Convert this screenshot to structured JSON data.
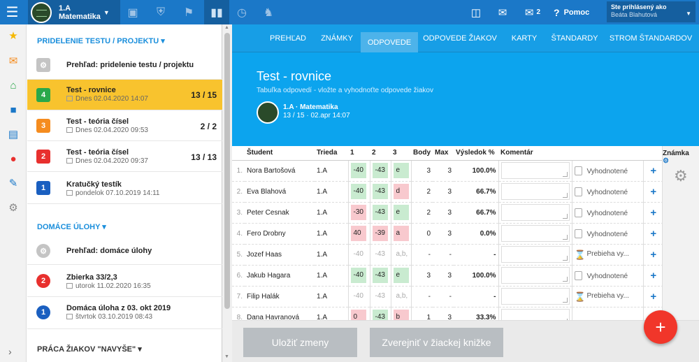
{
  "topbar": {
    "class_name": "1.A",
    "subject": "Matematika",
    "icons": [
      "briefcase-icon",
      "shield-icon",
      "bank-icon",
      "bar-chart-icon",
      "clock-icon",
      "walking-icon"
    ],
    "messages_badge": "2",
    "help_label": "Pomoc",
    "user_label": "Ste prihlásený ako",
    "user_name": "Beáta Blahutová"
  },
  "panel": {
    "section1": "PRIDELENIE TESTU / PROJEKTU",
    "overview1": "Prehľad: pridelenie testu / projektu",
    "tests": [
      {
        "num": "4",
        "title": "Test - rovnice",
        "date": "Dnes 02.04.2020 14:07",
        "score": "13 / 15",
        "color": "#2aa84a"
      },
      {
        "num": "3",
        "title": "Test - teória čísel",
        "date": "Dnes 02.04.2020 09:53",
        "score": "2 / 2",
        "color": "#f58c1f"
      },
      {
        "num": "2",
        "title": "Test - teória čísel",
        "date": "Dnes 02.04.2020 09:37",
        "score": "13 / 13",
        "color": "#e8302e"
      },
      {
        "num": "1",
        "title": "Kratučký testík",
        "date": "pondelok 07.10.2019 14:11",
        "score": "",
        "color": "#1a5fc0"
      }
    ],
    "section2": "DOMÁCE ÚLOHY",
    "overview2": "Prehľad: domáce úlohy",
    "homeworks": [
      {
        "num": "2",
        "title": "Zbierka 33/2,3",
        "date": "utorok 11.02.2020 16:35",
        "color": "#e8302e"
      },
      {
        "num": "1",
        "title": "Domáca úloha z 03. okt 2019",
        "date": "štvrtok 03.10.2019 08:43",
        "color": "#1a5fc0"
      }
    ],
    "section3": "PRÁCA ŽIAKOV \"NAVYŠE\""
  },
  "tabs": [
    "PREHĽAD",
    "ZNÁMKY",
    "ODPOVEDE",
    "ODPOVEDE ŽIAKOV",
    "KARTY",
    "ŠTANDARDY",
    "STROM ŠTANDARDOV"
  ],
  "hero": {
    "title": "Test - rovnice",
    "subtitle": "Tabuľka odpovedí - vložte a vyhodnoťte odpovede žiakov",
    "meta1": "1.A · Matematika",
    "meta2": "13 / 15 · 02.apr 14:07"
  },
  "table": {
    "headers": [
      "Študent",
      "Trieda",
      "1",
      "2",
      "3",
      "Body",
      "Max",
      "Výsledok %",
      "Komentár",
      "Známka"
    ],
    "rows": [
      {
        "n": "1.",
        "name": "Nora Bartošová",
        "cls": "1.A",
        "a1": "-40",
        "a2": "-43",
        "a3": "e",
        "s1": "ok",
        "s2": "ok",
        "s3": "ok",
        "body": "3",
        "max": "3",
        "pct": "100.0%",
        "status": "Vyhodnotené",
        "icon": "doc"
      },
      {
        "n": "2.",
        "name": "Eva Blahová",
        "cls": "1.A",
        "a1": "-40",
        "a2": "-43",
        "a3": "d",
        "s1": "ok",
        "s2": "ok",
        "s3": "bad",
        "body": "2",
        "max": "3",
        "pct": "66.7%",
        "status": "Vyhodnotené",
        "icon": "doc"
      },
      {
        "n": "3.",
        "name": "Peter Cesnak",
        "cls": "1.A",
        "a1": "-30",
        "a2": "-43",
        "a3": "e",
        "s1": "bad",
        "s2": "ok",
        "s3": "ok",
        "body": "2",
        "max": "3",
        "pct": "66.7%",
        "status": "Vyhodnotené",
        "icon": "doc"
      },
      {
        "n": "4.",
        "name": "Fero Drobny",
        "cls": "1.A",
        "a1": "40",
        "a2": "-39",
        "a3": "a",
        "s1": "bad",
        "s2": "bad",
        "s3": "bad",
        "body": "0",
        "max": "3",
        "pct": "0.0%",
        "status": "Vyhodnotené",
        "icon": "doc"
      },
      {
        "n": "5.",
        "name": "Jozef Haas",
        "cls": "1.A",
        "a1": "-40",
        "a2": "-43",
        "a3": "a,b,",
        "s1": "na",
        "s2": "na",
        "s3": "na",
        "body": "-",
        "max": "-",
        "pct": "-",
        "status": "Prebieha vy...",
        "icon": "hour"
      },
      {
        "n": "6.",
        "name": "Jakub Hagara",
        "cls": "1.A",
        "a1": "-40",
        "a2": "-43",
        "a3": "e",
        "s1": "ok",
        "s2": "ok",
        "s3": "ok",
        "body": "3",
        "max": "3",
        "pct": "100.0%",
        "status": "Vyhodnotené",
        "icon": "doc"
      },
      {
        "n": "7.",
        "name": "Filip Halák",
        "cls": "1.A",
        "a1": "-40",
        "a2": "-43",
        "a3": "a,b,",
        "s1": "na",
        "s2": "na",
        "s3": "na",
        "body": "-",
        "max": "-",
        "pct": "-",
        "status": "Prebieha vy...",
        "icon": "hour"
      },
      {
        "n": "8.",
        "name": "Dana Havranová",
        "cls": "1.A",
        "a1": "0",
        "a2": "-43",
        "a3": "b",
        "s1": "bad",
        "s2": "ok",
        "s3": "bad",
        "body": "1",
        "max": "3",
        "pct": "33.3%",
        "status": "",
        "icon": "none"
      }
    ]
  },
  "footer": {
    "save": "Uložiť zmeny",
    "publish": "Zverejniť v žiackej knižke"
  }
}
